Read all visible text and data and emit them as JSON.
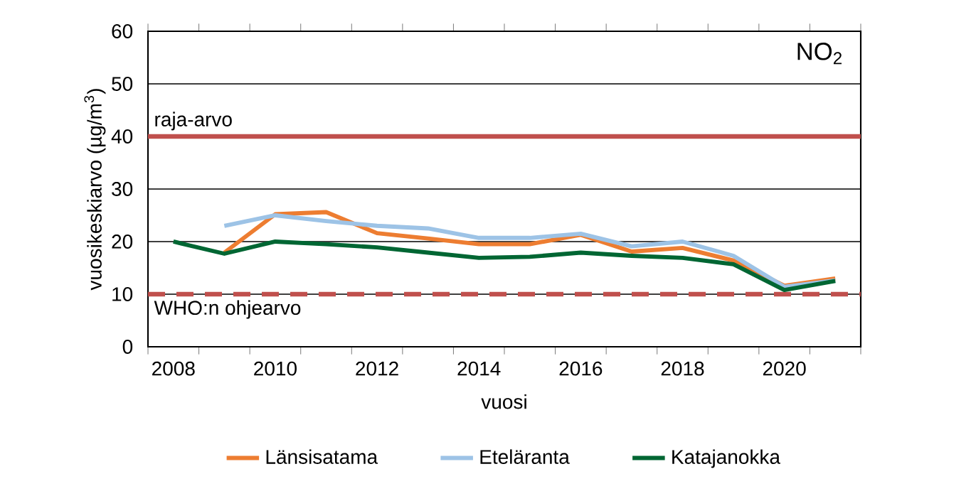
{
  "chart_data": {
    "type": "line",
    "title": "NO$_{2}$",
    "xlabel": "vuosi",
    "ylabel": "vuosikeskiarvo (µg/m$^{3}$)",
    "categories": [
      "2008",
      null,
      "2010",
      null,
      "2012",
      null,
      "2014",
      null,
      "2016",
      null,
      "2018",
      null,
      "2020",
      null
    ],
    "series": [
      {
        "name": "Länsisatama",
        "color": "#ed7d31",
        "values": [
          null,
          17.9,
          25.2,
          25.6,
          21.6,
          20.6,
          19.5,
          19.5,
          21.3,
          18.1,
          18.8,
          16.4,
          11.6,
          13.0
        ]
      },
      {
        "name": "Eteläranta",
        "color": "#9dc3e6",
        "values": [
          null,
          23.0,
          25.0,
          23.9,
          23.0,
          22.5,
          20.7,
          20.7,
          21.5,
          19.1,
          20.0,
          17.3,
          11.4,
          12.6
        ]
      },
      {
        "name": "Katajanokka",
        "color": "#006633",
        "values": [
          20.0,
          17.7,
          20.0,
          19.5,
          18.9,
          17.9,
          16.9,
          17.1,
          17.9,
          17.3,
          16.9,
          15.7,
          10.8,
          12.5
        ]
      }
    ],
    "ylim": [
      0,
      60
    ],
    "yticks": [
      0,
      10,
      20,
      30,
      40,
      50,
      60
    ],
    "grid": "y",
    "legend": "bottom",
    "line_style": "solid",
    "marker": "none",
    "ref_lines": [
      {
        "axis": "y",
        "value": 40,
        "label": "raja-arvo",
        "color": "#c0504d",
        "line_style": "solid"
      },
      {
        "axis": "y",
        "value": 10,
        "label": "WHO:n ohjearvo",
        "color": "#c0504d",
        "line_style": "dashed"
      }
    ]
  }
}
